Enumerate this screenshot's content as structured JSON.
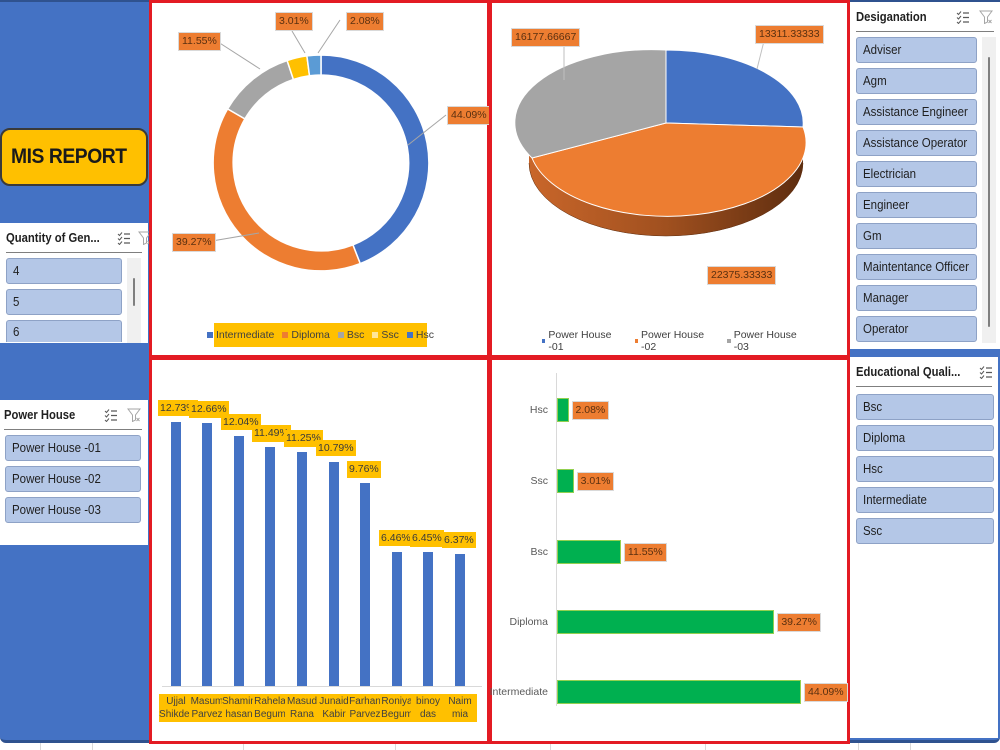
{
  "title_button": {
    "label": "MIS REPORT"
  },
  "colors": {
    "sidebar_blue": "#4472c4",
    "panel_border_red": "#e31b23",
    "accent_yellow": "#ffc000",
    "series_blue": "#4472c4",
    "series_orange": "#ed7d31",
    "series_gray": "#a5a5a5",
    "series_lightblue": "#5b9bd5",
    "bar_green": "#00b050",
    "slicer_item_bg": "#b4c7e7"
  },
  "slicers": {
    "quantity": {
      "title": "Quantity of Gen...",
      "items": [
        {
          "label": "4"
        },
        {
          "label": "5"
        },
        {
          "label": "6"
        }
      ]
    },
    "power_house": {
      "title": "Power House",
      "items": [
        {
          "label": "Power House -01"
        },
        {
          "label": "Power House -02"
        },
        {
          "label": "Power House -03"
        }
      ]
    },
    "designation": {
      "title": "Desiganation",
      "items": [
        {
          "label": "Adviser"
        },
        {
          "label": "Agm"
        },
        {
          "label": "Assistance Engineer"
        },
        {
          "label": "Assistance Operator"
        },
        {
          "label": "Electrician"
        },
        {
          "label": "Engineer"
        },
        {
          "label": "Gm"
        },
        {
          "label": "Maintentance Officer"
        },
        {
          "label": "Manager"
        },
        {
          "label": "Operator"
        }
      ]
    },
    "education": {
      "title": "Educational Quali...",
      "items": [
        {
          "label": "Bsc"
        },
        {
          "label": "Diploma"
        },
        {
          "label": "Hsc"
        },
        {
          "label": "Intermediate"
        },
        {
          "label": "Ssc"
        }
      ]
    }
  },
  "icons": {
    "multi_select": "multi-select-icon",
    "clear_filter": "clear-filter-icon"
  },
  "chart_data": [
    {
      "type": "pie",
      "variant": "doughnut",
      "title": "",
      "categories": [
        "Intermediate",
        "Diploma",
        "Bsc",
        "Ssc",
        "Hsc"
      ],
      "values": [
        44.09,
        39.27,
        11.55,
        3.01,
        2.08
      ],
      "labels": [
        "44.09%",
        "39.27%",
        "11.55%",
        "3.01%",
        "2.08%"
      ],
      "colors": [
        "#4472c4",
        "#ed7d31",
        "#a5a5a5",
        "#ffc000",
        "#5b9bd5"
      ],
      "legend": {
        "position": "bottom",
        "entries": [
          "Intermediate",
          "Diploma",
          "Bsc",
          "Ssc",
          "Hsc"
        ]
      }
    },
    {
      "type": "pie",
      "variant": "3d",
      "title": "",
      "categories": [
        "Power House -01",
        "Power House -02",
        "Power House -03"
      ],
      "values": [
        13311.33333,
        22375.33333,
        16177.66667
      ],
      "labels": [
        "13311.33333",
        "22375.33333",
        "16177.66667"
      ],
      "colors": [
        "#4472c4",
        "#ed7d31",
        "#a5a5a5"
      ],
      "legend": {
        "position": "bottom",
        "entries": [
          "Power House -01",
          "Power House -02",
          "Power House -03"
        ]
      }
    },
    {
      "type": "bar",
      "orientation": "vertical",
      "title": "",
      "categories": [
        "Ujjal Shikder",
        "Masum Parvez",
        "Shamim hasan",
        "Rahela Begum",
        "Masud Rana",
        "Junaid Kabir",
        "Farhan Parvez",
        "Roniya Begum",
        "binoy das",
        "Naim mia"
      ],
      "category_lines": [
        [
          "Ujjal",
          "Shikder"
        ],
        [
          "Masum",
          "Parvez"
        ],
        [
          "Shamim",
          "hasan"
        ],
        [
          "Rahela",
          "Begum"
        ],
        [
          "Masud",
          "Rana"
        ],
        [
          "Junaid",
          "Kabir"
        ],
        [
          "Farhan",
          "Parvez"
        ],
        [
          "Roniya",
          "Begum"
        ],
        [
          "binoy",
          "das"
        ],
        [
          "Naim",
          "mia"
        ]
      ],
      "values": [
        12.73,
        12.66,
        12.04,
        11.49,
        11.25,
        10.79,
        9.76,
        6.46,
        6.45,
        6.37
      ],
      "labels": [
        "12.73%",
        "12.66%",
        "12.04%",
        "11.49%",
        "11.25%",
        "10.79%",
        "9.76%",
        "6.46%",
        "6.45%",
        "6.37%"
      ],
      "color": "#4472c4",
      "xlabel": "",
      "ylabel": "",
      "grid": false
    },
    {
      "type": "bar",
      "orientation": "horizontal",
      "title": "",
      "categories": [
        "Hsc",
        "Ssc",
        "Bsc",
        "Diploma",
        "Intermediate"
      ],
      "values": [
        2.08,
        3.01,
        11.55,
        39.27,
        44.09
      ],
      "labels": [
        "2.08%",
        "3.01%",
        "11.55%",
        "39.27%",
        "44.09%"
      ],
      "color": "#00b050",
      "xlabel": "",
      "ylabel": "",
      "grid": false
    }
  ]
}
